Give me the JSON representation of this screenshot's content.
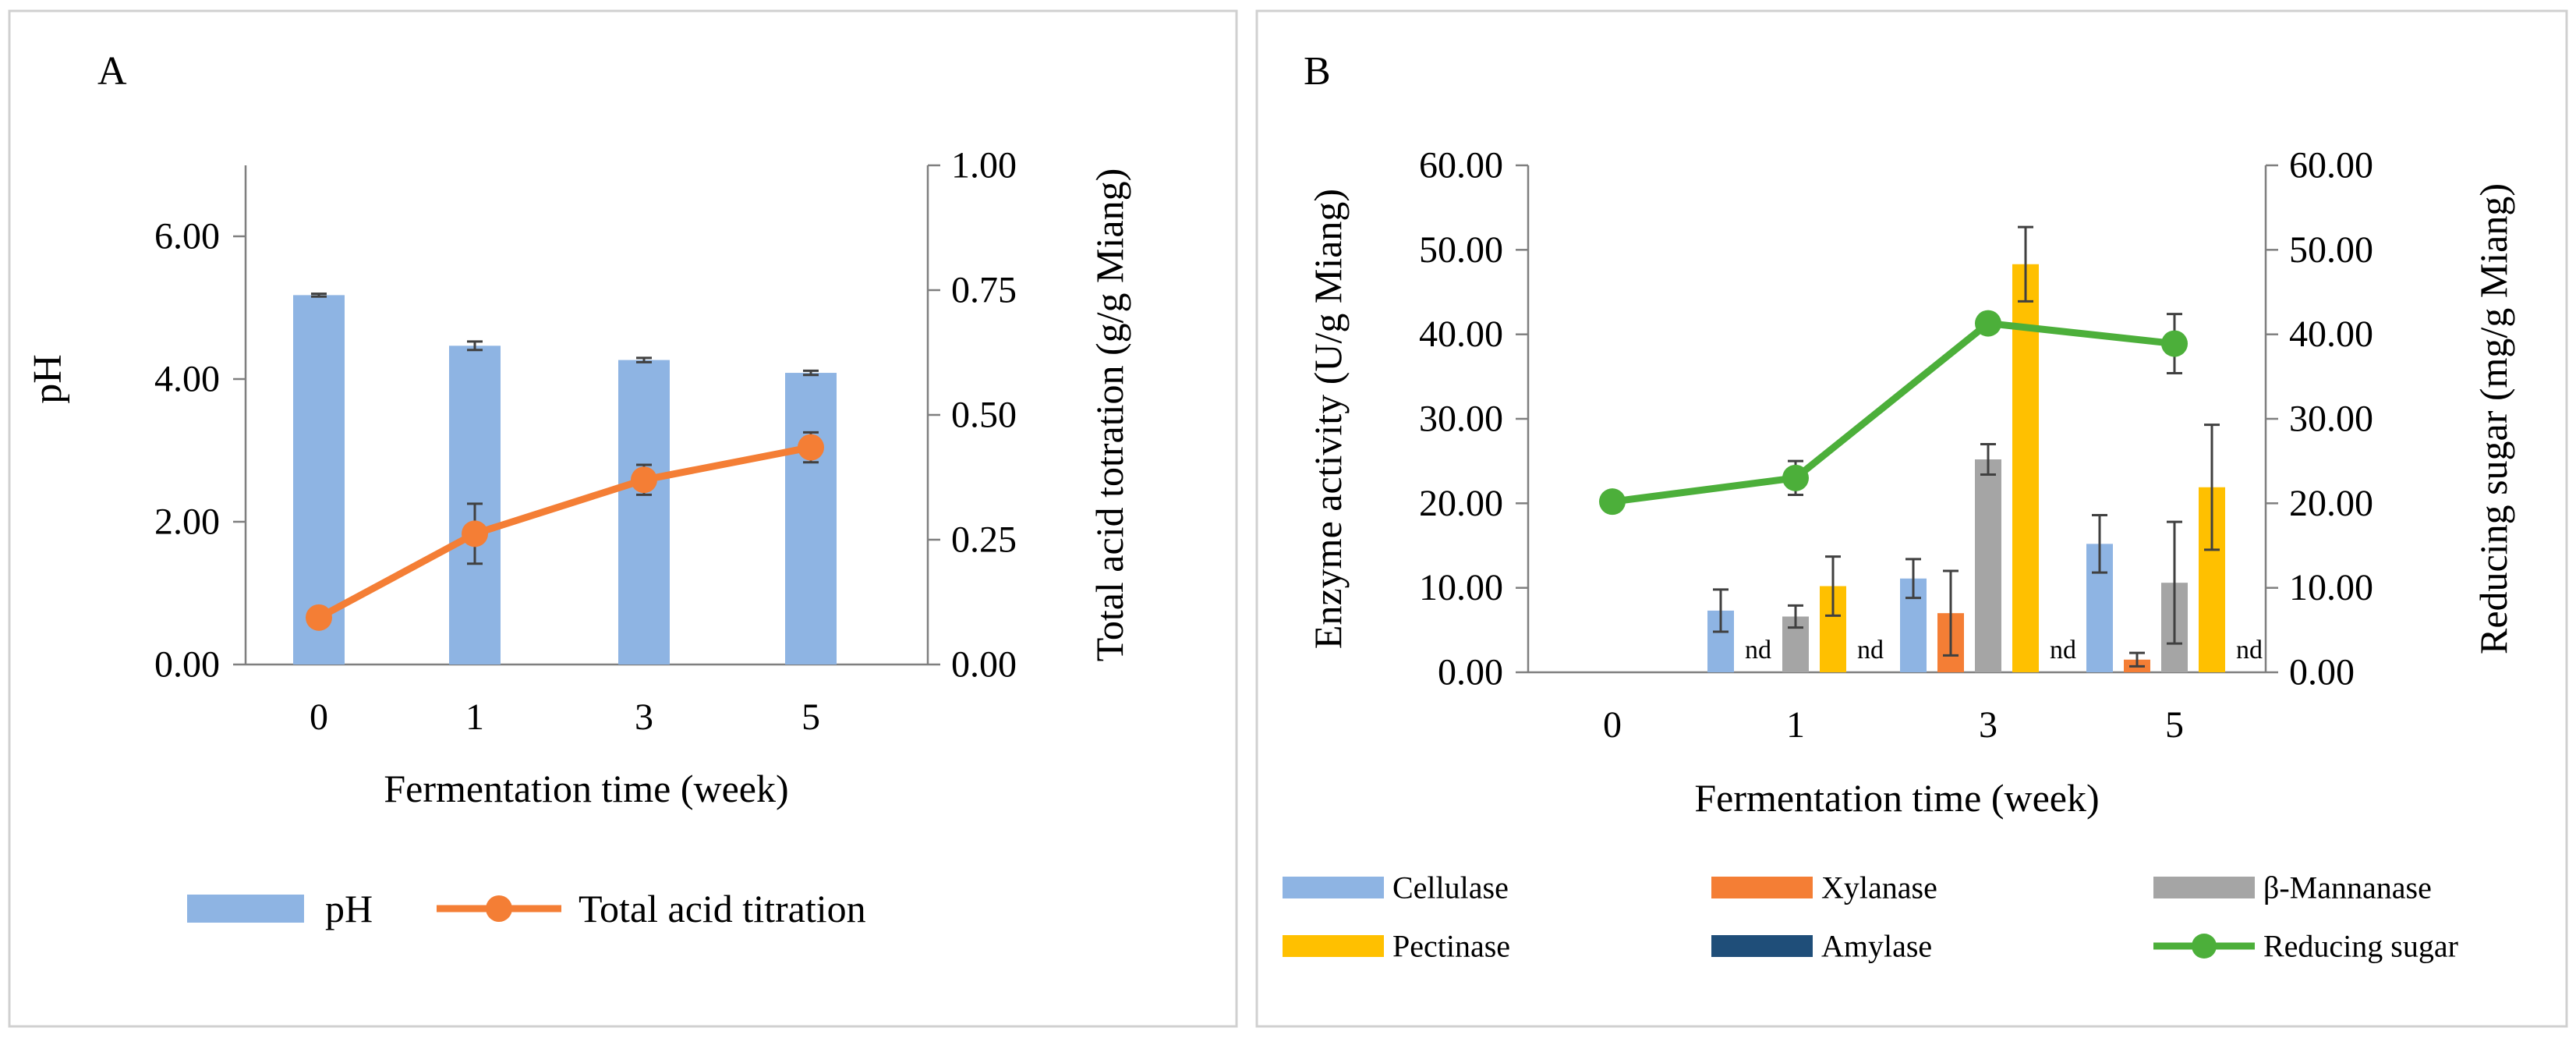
{
  "chart_data": [
    {
      "panel_label": "A",
      "type": "bar",
      "categories": [
        "0",
        "1",
        "3",
        "5"
      ],
      "xlabel": "Fermentation time (week)",
      "ylabel": "pH",
      "y2label": "Total acid totration (g/g Miang)",
      "ylim": [
        0,
        7
      ],
      "y2lim": [
        0,
        1
      ],
      "yticks": [
        "0.00",
        "2.00",
        "4.00",
        "6.00"
      ],
      "y2ticks": [
        "0.00",
        "0.25",
        "0.50",
        "0.75",
        "1.00"
      ],
      "colors": {
        "pH": "#8EB4E3",
        "acid": "#F47E35",
        "errorbar": "#404040"
      },
      "series": [
        {
          "name": "pH",
          "kind": "bar",
          "axis": "left",
          "values": [
            5.18,
            4.47,
            4.27,
            4.09
          ],
          "errors": [
            0.02,
            0.06,
            0.03,
            0.03
          ]
        },
        {
          "name": "Total acid titration",
          "kind": "line",
          "axis": "right",
          "values": [
            0.094,
            0.262,
            0.37,
            0.435
          ],
          "errors": [
            0.005,
            0.06,
            0.03,
            0.03
          ]
        }
      ],
      "legend": [
        "pH",
        "Total acid titration"
      ],
      "legend_position": "bottom"
    },
    {
      "panel_label": "B",
      "type": "bar",
      "categories": [
        "0",
        "1",
        "3",
        "5"
      ],
      "xlabel": "Fermentation time (week)",
      "ylabel": "Enzyme activity (U/g Miang)",
      "y2label": "Reducing sugar (mg/g Miang)",
      "ylim": [
        0,
        60
      ],
      "y2lim": [
        0,
        60
      ],
      "yticks": [
        "0.00",
        "10.00",
        "20.00",
        "30.00",
        "40.00",
        "50.00",
        "60.00"
      ],
      "y2ticks": [
        "0.00",
        "10.00",
        "20.00",
        "30.00",
        "40.00",
        "50.00",
        "60.00"
      ],
      "colors": {
        "Cellulase": "#8EB4E3",
        "Xylanase": "#F47E35",
        "Mannanase": "#A5A5A5",
        "Pectinase": "#FFC000",
        "Amylase": "#1F4E79",
        "Reducing": "#4CAF3A",
        "errorbar": "#404040"
      },
      "nd_label": "nd",
      "series": [
        {
          "name": "Cellulase",
          "kind": "bar",
          "values": [
            0,
            7.3,
            11.1,
            15.2
          ],
          "errors": [
            0,
            2.5,
            2.3,
            3.4
          ],
          "nd": [
            false,
            false,
            false,
            false
          ]
        },
        {
          "name": "Xylanase",
          "kind": "bar",
          "values": [
            0,
            0,
            7.0,
            1.5
          ],
          "errors": [
            0,
            0,
            5.0,
            0.8
          ],
          "nd": [
            false,
            true,
            false,
            false
          ]
        },
        {
          "name": "β-Mannanase",
          "kind": "bar",
          "values": [
            0,
            6.6,
            25.2,
            10.6
          ],
          "errors": [
            0,
            1.3,
            1.8,
            7.2
          ],
          "nd": [
            false,
            false,
            false,
            false
          ]
        },
        {
          "name": "Pectinase",
          "kind": "bar",
          "values": [
            0,
            10.2,
            48.3,
            21.9
          ],
          "errors": [
            0,
            3.5,
            4.4,
            7.4
          ],
          "nd": [
            false,
            false,
            false,
            false
          ]
        },
        {
          "name": "Amylase",
          "kind": "bar",
          "values": [
            0,
            0,
            0,
            0
          ],
          "errors": [
            0,
            0,
            0,
            0
          ],
          "nd": [
            false,
            true,
            true,
            true
          ]
        },
        {
          "name": "Reducing sugar",
          "kind": "line",
          "axis": "right",
          "values": [
            20.2,
            23.0,
            41.3,
            38.9
          ],
          "errors": [
            0,
            2.0,
            0,
            3.5
          ]
        }
      ],
      "legend": [
        "Cellulase",
        "Xylanase",
        "β-Mannanase",
        "Pectinase",
        "Amylase",
        "Reducing sugar"
      ],
      "legend_position": "bottom"
    }
  ]
}
